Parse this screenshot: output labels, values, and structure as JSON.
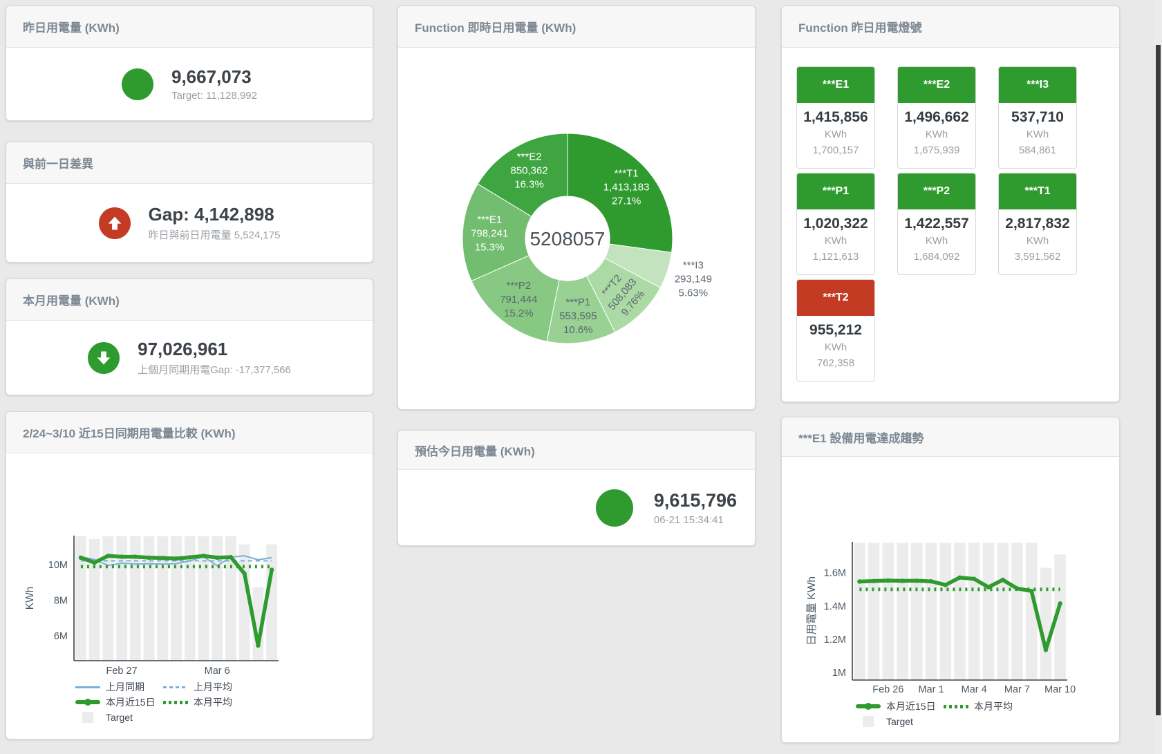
{
  "colors": {
    "green": "#2f9b2f",
    "red": "#c43b23",
    "blue": "#7aaed6",
    "target_bar": "#ececec",
    "title_gray": "#7d8893",
    "value_dark": "#3d4349",
    "sub_gray": "#9aa0a6"
  },
  "cards": {
    "yesterday": {
      "title": "昨日用電量 (KWh)",
      "value": "9,667,073",
      "sub": "Target: 11,128,992"
    },
    "day_gap": {
      "title": "與前一日差異",
      "value": "Gap: 4,142,898",
      "sub": "昨日與前日用電量 5,524,175"
    },
    "month": {
      "title": "本月用電量 (KWh)",
      "value": "97,026,961",
      "sub": "上個月同期用電Gap: -17,377,566"
    },
    "forecast": {
      "title": "預估今日用電量 (KWh)",
      "value": "9,615,796",
      "sub": "06-21 15:34:41"
    },
    "lights": {
      "title": "Function 昨日用電燈號",
      "unit": "KWh",
      "tiles": [
        {
          "name": "***E1",
          "value": "1,415,856",
          "target": "1,700,157",
          "status": "green"
        },
        {
          "name": "***E2",
          "value": "1,496,662",
          "target": "1,675,939",
          "status": "green"
        },
        {
          "name": "***I3",
          "value": "537,710",
          "target": "584,861",
          "status": "green"
        },
        {
          "name": "***P1",
          "value": "1,020,322",
          "target": "1,121,613",
          "status": "green"
        },
        {
          "name": "***P2",
          "value": "1,422,557",
          "target": "1,684,092",
          "status": "green"
        },
        {
          "name": "***T1",
          "value": "2,817,832",
          "target": "3,591,562",
          "status": "green"
        },
        {
          "name": "***T2",
          "value": "955,212",
          "target": "762,358",
          "status": "red"
        }
      ]
    }
  },
  "chart_data": [
    {
      "type": "pie",
      "title": "Function 即時日用電量 (KWh)",
      "center_label": "5208057",
      "total": 5208057,
      "slices": [
        {
          "name": "***T1",
          "value": 1413183,
          "label_value": "1,413,183",
          "pct": 27.1,
          "pct_label": "27.1%",
          "color": "#2f9b2f",
          "text": "#ffffff"
        },
        {
          "name": "***I3",
          "value": 293149,
          "label_value": "293,149",
          "pct": 5.63,
          "pct_label": "5.63%",
          "color": "#c2e3bd",
          "text": "#5b6670",
          "label_out": true
        },
        {
          "name": "***T2",
          "value": 508083,
          "label_value": "508,083",
          "pct": 9.76,
          "pct_label": "9.76%",
          "color": "#abdaa5",
          "text": "#5b6670",
          "rotate": -50
        },
        {
          "name": "***P1",
          "value": 553595,
          "label_value": "553,595",
          "pct": 10.6,
          "pct_label": "10.6%",
          "color": "#98d193",
          "text": "#5b6670"
        },
        {
          "name": "***P2",
          "value": 791444,
          "label_value": "791,444",
          "pct": 15.2,
          "pct_label": "15.2%",
          "color": "#87c983",
          "text": "#5b6670"
        },
        {
          "name": "***E1",
          "value": 798241,
          "label_value": "798,241",
          "pct": 15.3,
          "pct_label": "15.3%",
          "color": "#72bd6f",
          "text": "#ffffff"
        },
        {
          "name": "***E2",
          "value": 850362,
          "label_value": "850,362",
          "pct": 16.3,
          "pct_label": "16.3%",
          "color": "#3fa541",
          "text": "#ffffff"
        }
      ]
    },
    {
      "type": "line",
      "title": "2/24~3/10 近15日同期用電量比較 (KWh)",
      "ylabel": "KWh",
      "ylim": [
        4.6,
        11.64
      ],
      "yticks": [
        {
          "v": 6,
          "label": "6M"
        },
        {
          "v": 8,
          "label": "8M"
        },
        {
          "v": 10,
          "label": "10M"
        }
      ],
      "x_count": 15,
      "xticks": [
        {
          "i": 3,
          "label": "Feb 27"
        },
        {
          "i": 10,
          "label": "Mar 6"
        }
      ],
      "unit_scale": "millions KWh",
      "target": {
        "name": "Target",
        "color": "#ececec",
        "values": [
          11.6,
          11.45,
          11.6,
          11.6,
          11.6,
          11.6,
          11.6,
          11.6,
          11.6,
          11.6,
          11.6,
          11.6,
          11.15,
          8.75,
          11.15
        ]
      },
      "series": [
        {
          "name": "上月同期",
          "style": "thin",
          "color": "#7aaed6",
          "values": [
            10.45,
            10.3,
            9.96,
            10.09,
            10.04,
            10.06,
            10.04,
            10.06,
            10.22,
            10.45,
            9.94,
            10.43,
            10.5,
            10.28,
            10.4
          ]
        },
        {
          "name": "上月平均",
          "style": "dashed",
          "color": "#7aaed6",
          "const": 10.22
        },
        {
          "name": "本月近15日",
          "style": "thick",
          "color": "#2f9b2f",
          "markers": true,
          "values": [
            10.4,
            10.12,
            10.5,
            10.45,
            10.45,
            10.4,
            10.38,
            10.35,
            10.42,
            10.5,
            10.4,
            10.43,
            9.5,
            5.45,
            9.72
          ]
        },
        {
          "name": "本月平均",
          "style": "dotted",
          "color": "#2f9b2f",
          "const": 9.9
        }
      ],
      "legend": [
        {
          "label": "上月同期",
          "swatch": "line-blue"
        },
        {
          "label": "上月平均",
          "swatch": "dash-blue"
        },
        {
          "label": "本月近15日",
          "swatch": "thick-green"
        },
        {
          "label": "本月平均",
          "swatch": "dot-green"
        },
        {
          "label": "Target",
          "swatch": "box-gray"
        }
      ]
    },
    {
      "type": "line",
      "title": "***E1 設備用電達成趨勢",
      "ylabel": "日用電量 KWh",
      "ylim": [
        0.954,
        1.786
      ],
      "yticks": [
        {
          "v": 1,
          "label": "1M"
        },
        {
          "v": 1.2,
          "label": "1.2M"
        },
        {
          "v": 1.4,
          "label": "1.4M"
        },
        {
          "v": 1.6,
          "label": "1.6M"
        }
      ],
      "x_count": 15,
      "xticks": [
        {
          "i": 2,
          "label": "Feb 26"
        },
        {
          "i": 5,
          "label": "Mar 1"
        },
        {
          "i": 8,
          "label": "Mar 4"
        },
        {
          "i": 11,
          "label": "Mar 7"
        },
        {
          "i": 14,
          "label": "Mar 10"
        }
      ],
      "unit_scale": "millions KWh",
      "target": {
        "name": "Target",
        "color": "#ececec",
        "values": [
          1.78,
          1.78,
          1.78,
          1.78,
          1.78,
          1.78,
          1.78,
          1.78,
          1.78,
          1.78,
          1.78,
          1.78,
          1.78,
          1.63,
          1.71
        ]
      },
      "series": [
        {
          "name": "本月近15日",
          "style": "thick",
          "color": "#2f9b2f",
          "markers": true,
          "values": [
            1.547,
            1.55,
            1.553,
            1.551,
            1.552,
            1.548,
            1.527,
            1.571,
            1.563,
            1.513,
            1.557,
            1.505,
            1.49,
            1.135,
            1.415
          ]
        },
        {
          "name": "本月平均",
          "style": "dotted",
          "color": "#2f9b2f",
          "const": 1.5
        }
      ],
      "legend": [
        {
          "label": "本月近15日",
          "swatch": "thick-green"
        },
        {
          "label": "本月平均",
          "swatch": "dot-green"
        },
        {
          "label": "Target",
          "swatch": "box-gray"
        }
      ]
    }
  ]
}
